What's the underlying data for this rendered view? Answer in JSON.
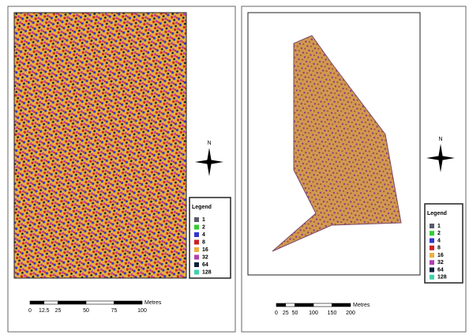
{
  "left_map": {
    "north": "N",
    "legend": {
      "title": "Legend",
      "items": [
        {
          "label": "1",
          "color": "#5a5a6a"
        },
        {
          "label": "2",
          "color": "#33cc33"
        },
        {
          "label": "4",
          "color": "#3333cc"
        },
        {
          "label": "8",
          "color": "#cc2222"
        },
        {
          "label": "16",
          "color": "#e8b040"
        },
        {
          "label": "32",
          "color": "#b040b0"
        },
        {
          "label": "64",
          "color": "#102040"
        },
        {
          "label": "128",
          "color": "#40d0b0"
        }
      ]
    },
    "scale": {
      "labels": [
        "0",
        "12.5",
        "25",
        "50",
        "75",
        "100"
      ],
      "unit": "Metres"
    }
  },
  "right_map": {
    "north": "N",
    "legend": {
      "title": "Legend",
      "items": [
        {
          "label": "1",
          "color": "#5a5a6a"
        },
        {
          "label": "2",
          "color": "#33cc33"
        },
        {
          "label": "4",
          "color": "#3333cc"
        },
        {
          "label": "8",
          "color": "#cc2222"
        },
        {
          "label": "16",
          "color": "#e8b040"
        },
        {
          "label": "32",
          "color": "#b040b0"
        },
        {
          "label": "64",
          "color": "#102040"
        },
        {
          "label": "128",
          "color": "#40d0b0"
        }
      ]
    },
    "scale": {
      "labels": [
        "0",
        "25",
        "50",
        "100",
        "150",
        "200"
      ],
      "unit": "Metres"
    }
  }
}
